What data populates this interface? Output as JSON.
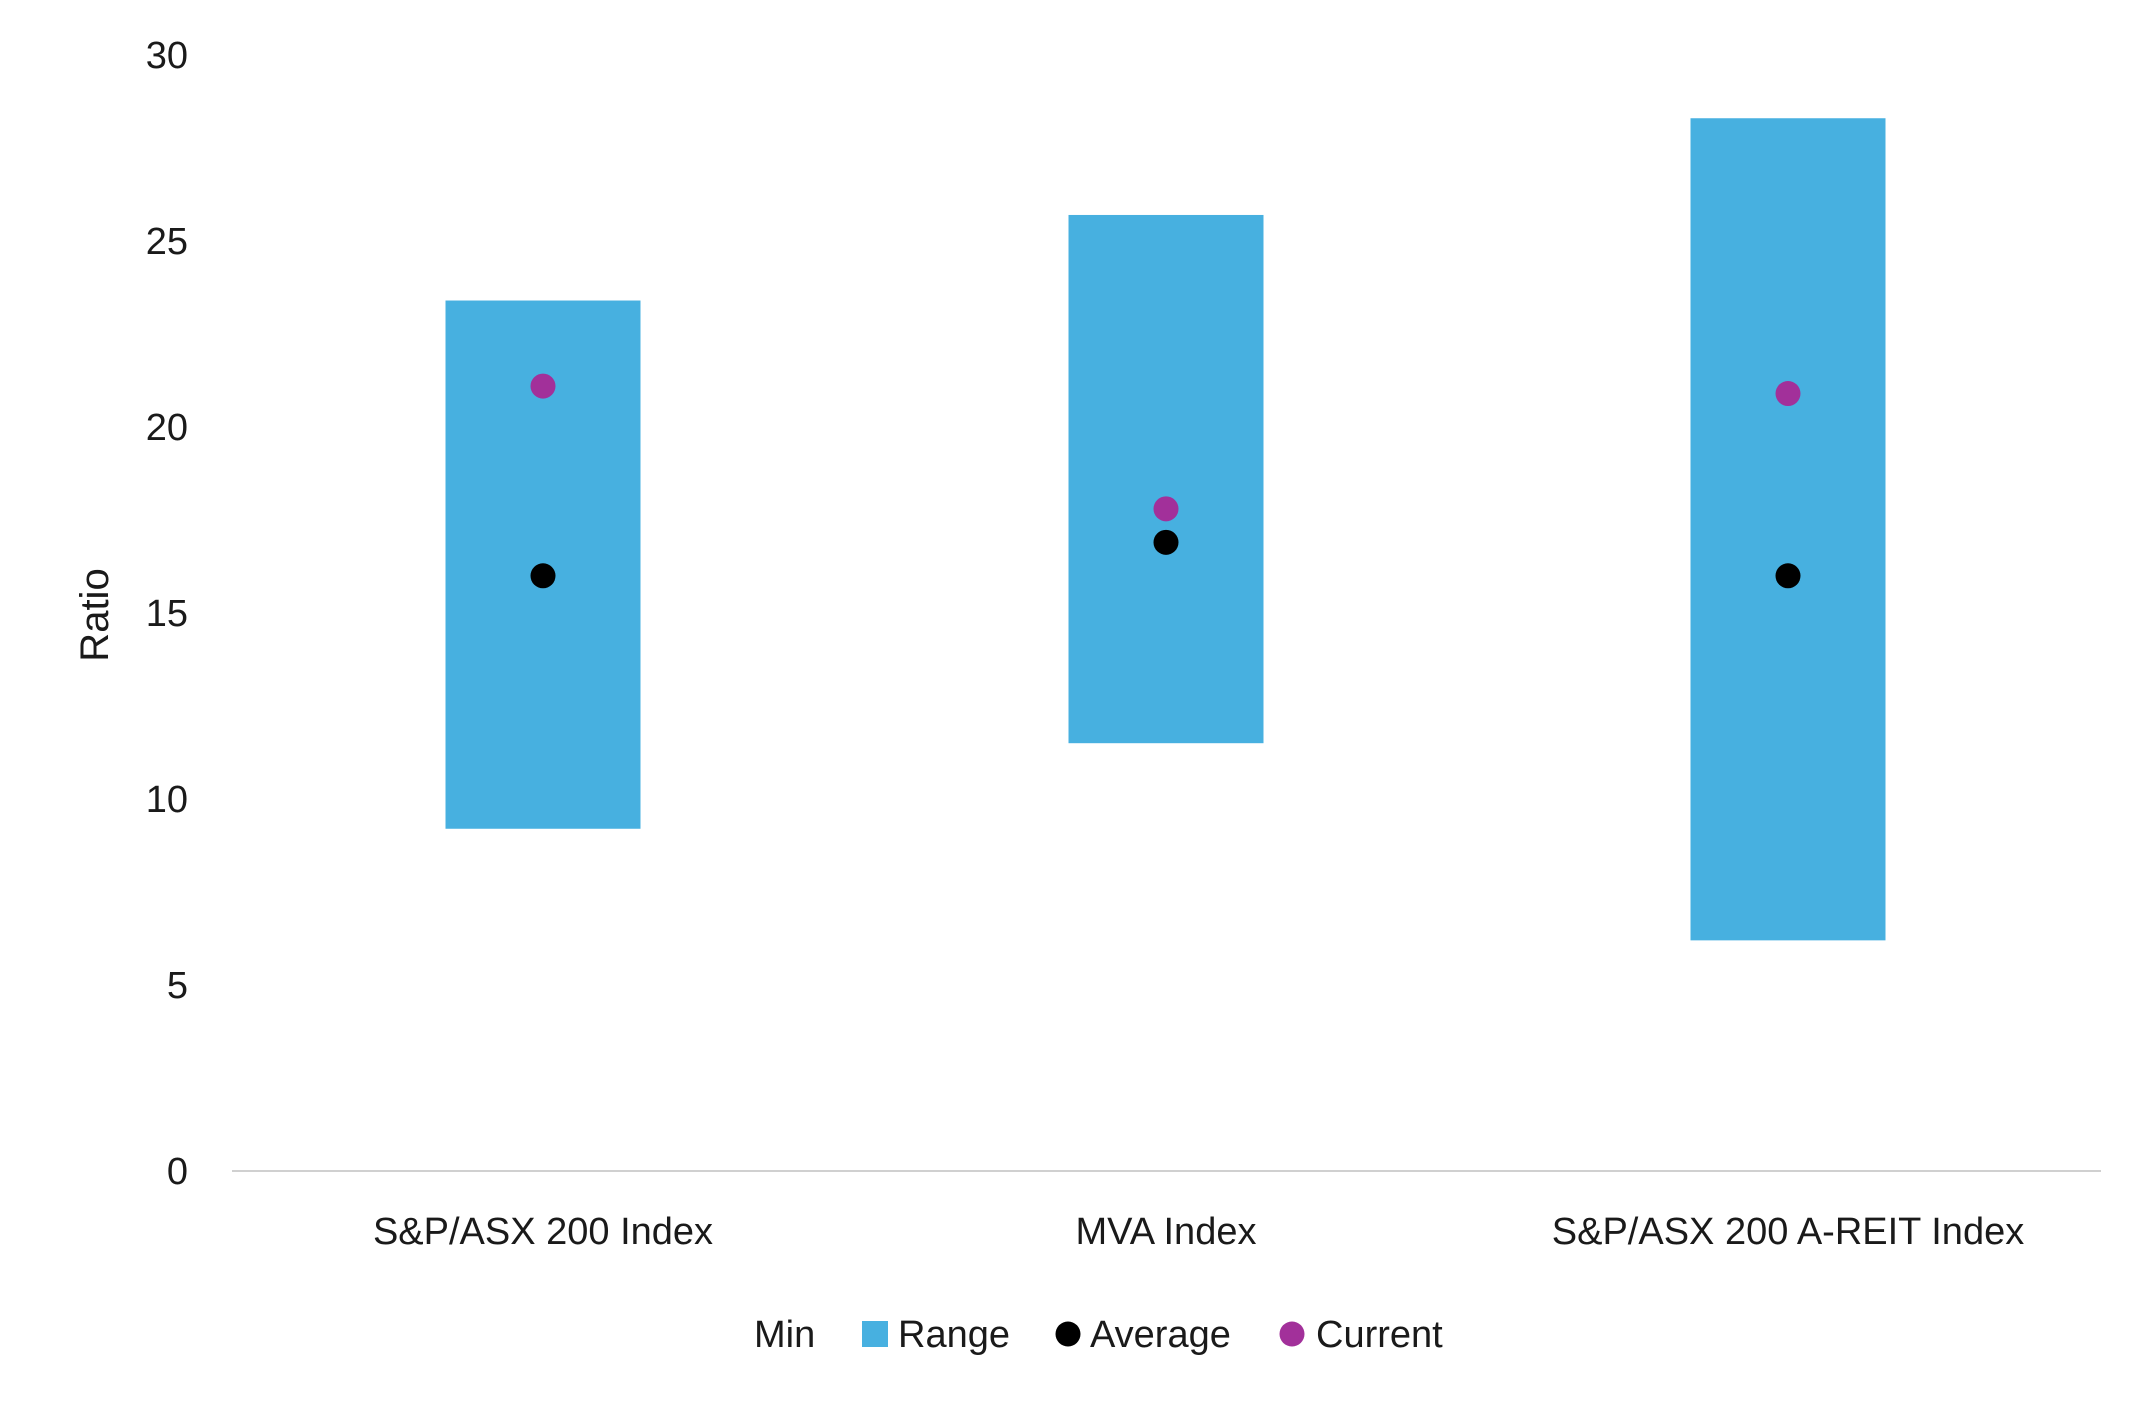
{
  "chart_data": {
    "type": "bar",
    "subtype": "floating-range-with-markers",
    "title": "",
    "xlabel": "",
    "ylabel": "Ratio",
    "ylim": [
      0,
      30
    ],
    "yticks": [
      0,
      5,
      10,
      15,
      20,
      25,
      30
    ],
    "grid": false,
    "categories": [
      "S&P/ASX 200 Index",
      "MVA Index",
      "S&P/ASX 200 A-REIT Index"
    ],
    "series": [
      {
        "name": "Min",
        "values": [
          9.2,
          11.5,
          6.2
        ]
      },
      {
        "name": "Range",
        "values": [
          14.2,
          14.2,
          22.1
        ],
        "color": "#47B0E0"
      },
      {
        "name": "Average",
        "values": [
          16.0,
          16.9,
          16.0
        ],
        "color": "#000000"
      },
      {
        "name": "Current",
        "values": [
          21.1,
          17.8,
          20.9
        ],
        "color": "#A2309A"
      }
    ],
    "legend": {
      "position": "bottom",
      "entries": [
        "Min",
        "Range",
        "Average",
        "Current"
      ]
    }
  }
}
